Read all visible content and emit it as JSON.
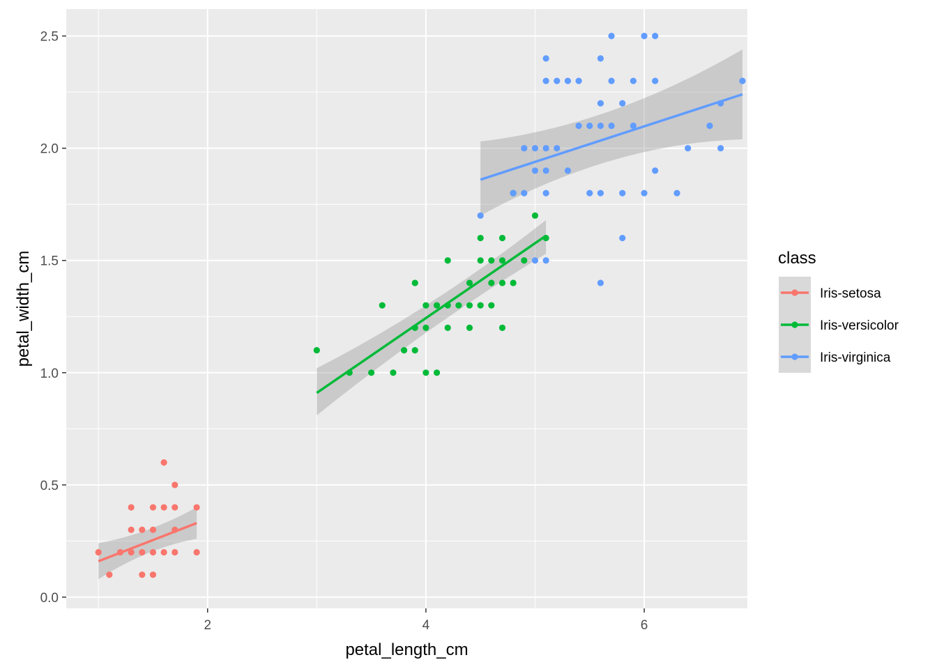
{
  "chart_data": {
    "type": "scatter",
    "title": "",
    "xlabel": "petal_length_cm",
    "ylabel": "petal_width_cm",
    "xlim": [
      0.705,
      6.945
    ],
    "ylim": [
      -0.05,
      2.62
    ],
    "x_ticks": [
      2,
      4,
      6
    ],
    "y_ticks": [
      0.0,
      0.5,
      1.0,
      1.5,
      2.0,
      2.5
    ],
    "x_tick_labels": [
      "2",
      "4",
      "6"
    ],
    "y_tick_labels": [
      "0.0",
      "0.5",
      "1.0",
      "1.5",
      "2.0",
      "2.5"
    ],
    "grid": true,
    "legend": {
      "title": "class",
      "placement": "right"
    },
    "series": [
      {
        "name": "Iris-setosa",
        "color": "#F8766D",
        "points": [
          [
            1.0,
            0.2
          ],
          [
            1.1,
            0.1
          ],
          [
            1.2,
            0.2
          ],
          [
            1.3,
            0.2
          ],
          [
            1.3,
            0.3
          ],
          [
            1.3,
            0.4
          ],
          [
            1.4,
            0.1
          ],
          [
            1.4,
            0.2
          ],
          [
            1.4,
            0.3
          ],
          [
            1.5,
            0.1
          ],
          [
            1.5,
            0.2
          ],
          [
            1.5,
            0.3
          ],
          [
            1.5,
            0.4
          ],
          [
            1.6,
            0.2
          ],
          [
            1.6,
            0.4
          ],
          [
            1.6,
            0.6
          ],
          [
            1.7,
            0.2
          ],
          [
            1.7,
            0.3
          ],
          [
            1.7,
            0.4
          ],
          [
            1.7,
            0.5
          ],
          [
            1.9,
            0.2
          ],
          [
            1.9,
            0.4
          ]
        ],
        "fit": {
          "x0": 1.0,
          "y0": 0.16,
          "x1": 1.9,
          "y1": 0.33
        },
        "band": [
          [
            1.0,
            0.08,
            0.24
          ],
          [
            1.45,
            0.22,
            0.28
          ],
          [
            1.9,
            0.26,
            0.4
          ]
        ]
      },
      {
        "name": "Iris-versicolor",
        "color": "#00BA38",
        "points": [
          [
            3.0,
            1.1
          ],
          [
            3.3,
            1.0
          ],
          [
            3.5,
            1.0
          ],
          [
            3.6,
            1.3
          ],
          [
            3.7,
            1.0
          ],
          [
            3.8,
            1.1
          ],
          [
            3.9,
            1.1
          ],
          [
            3.9,
            1.2
          ],
          [
            3.9,
            1.4
          ],
          [
            4.0,
            1.0
          ],
          [
            4.0,
            1.2
          ],
          [
            4.0,
            1.3
          ],
          [
            4.1,
            1.0
          ],
          [
            4.1,
            1.3
          ],
          [
            4.2,
            1.2
          ],
          [
            4.2,
            1.3
          ],
          [
            4.2,
            1.5
          ],
          [
            4.3,
            1.3
          ],
          [
            4.4,
            1.2
          ],
          [
            4.4,
            1.3
          ],
          [
            4.4,
            1.4
          ],
          [
            4.5,
            1.3
          ],
          [
            4.5,
            1.5
          ],
          [
            4.5,
            1.6
          ],
          [
            4.6,
            1.3
          ],
          [
            4.6,
            1.4
          ],
          [
            4.6,
            1.5
          ],
          [
            4.7,
            1.2
          ],
          [
            4.7,
            1.4
          ],
          [
            4.7,
            1.5
          ],
          [
            4.7,
            1.6
          ],
          [
            4.8,
            1.4
          ],
          [
            4.8,
            1.8
          ],
          [
            4.9,
            1.5
          ],
          [
            5.0,
            1.7
          ],
          [
            5.1,
            1.6
          ]
        ],
        "fit": {
          "x0": 3.0,
          "y0": 0.91,
          "x1": 5.1,
          "y1": 1.61
        },
        "band": [
          [
            3.0,
            0.81,
            1.02
          ],
          [
            4.05,
            1.22,
            1.28
          ],
          [
            5.1,
            1.53,
            1.68
          ]
        ]
      },
      {
        "name": "Iris-virginica",
        "color": "#619CFF",
        "points": [
          [
            4.5,
            1.7
          ],
          [
            4.8,
            1.8
          ],
          [
            4.9,
            1.8
          ],
          [
            4.9,
            2.0
          ],
          [
            5.0,
            1.5
          ],
          [
            5.0,
            1.9
          ],
          [
            5.0,
            2.0
          ],
          [
            5.1,
            1.5
          ],
          [
            5.1,
            1.8
          ],
          [
            5.1,
            1.9
          ],
          [
            5.1,
            2.0
          ],
          [
            5.1,
            2.3
          ],
          [
            5.1,
            2.4
          ],
          [
            5.2,
            2.0
          ],
          [
            5.2,
            2.3
          ],
          [
            5.3,
            1.9
          ],
          [
            5.3,
            2.3
          ],
          [
            5.4,
            2.1
          ],
          [
            5.4,
            2.3
          ],
          [
            5.5,
            1.8
          ],
          [
            5.5,
            2.1
          ],
          [
            5.6,
            1.4
          ],
          [
            5.6,
            1.8
          ],
          [
            5.6,
            2.1
          ],
          [
            5.6,
            2.2
          ],
          [
            5.6,
            2.4
          ],
          [
            5.7,
            2.1
          ],
          [
            5.7,
            2.3
          ],
          [
            5.7,
            2.5
          ],
          [
            5.8,
            1.6
          ],
          [
            5.8,
            1.8
          ],
          [
            5.8,
            2.2
          ],
          [
            5.9,
            2.1
          ],
          [
            5.9,
            2.3
          ],
          [
            6.0,
            1.8
          ],
          [
            6.0,
            2.5
          ],
          [
            6.1,
            1.9
          ],
          [
            6.1,
            2.3
          ],
          [
            6.1,
            2.5
          ],
          [
            6.3,
            1.8
          ],
          [
            6.4,
            2.0
          ],
          [
            6.6,
            2.1
          ],
          [
            6.7,
            2.0
          ],
          [
            6.7,
            2.2
          ],
          [
            6.9,
            2.3
          ]
        ],
        "fit": {
          "x0": 4.5,
          "y0": 1.86,
          "x1": 6.9,
          "y1": 2.24
        },
        "band": [
          [
            4.5,
            1.7,
            2.03
          ],
          [
            5.7,
            2.02,
            2.1
          ],
          [
            6.9,
            2.04,
            2.44
          ]
        ]
      }
    ]
  }
}
